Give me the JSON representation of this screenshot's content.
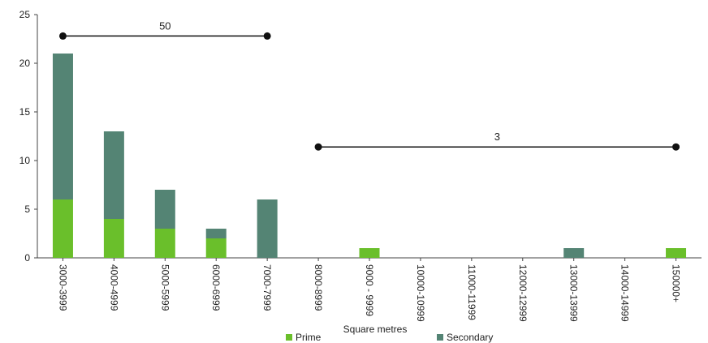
{
  "chart_data": {
    "type": "bar",
    "stacked": true,
    "xlabel": "Square metres",
    "ylabel": "",
    "ylim": [
      0,
      25
    ],
    "yticks": [
      0,
      5,
      10,
      15,
      20,
      25
    ],
    "grid": false,
    "legend_position": "bottom",
    "categories": [
      "3000-3999",
      "4000-4999",
      "5000-5999",
      "6000-6999",
      "7000-7999",
      "8000-8999",
      "9000 - 9999",
      "10000-10999",
      "11000-11999",
      "12000-12999",
      "13000-13999",
      "14000-14999",
      "150000+"
    ],
    "series": [
      {
        "name": "Prime",
        "color": "#6abf2b",
        "values": [
          6,
          4,
          3,
          2,
          0,
          0,
          1,
          0,
          0,
          0,
          0,
          0,
          1
        ]
      },
      {
        "name": "Secondary",
        "color": "#548474",
        "values": [
          15,
          9,
          4,
          1,
          6,
          0,
          0,
          0,
          0,
          0,
          1,
          0,
          0
        ]
      }
    ],
    "annotations": [
      {
        "label": "50",
        "from": "3000-3999",
        "to": "7000-7999",
        "y": 22.8
      },
      {
        "label": "3",
        "from": "8000-8999",
        "to": "150000+",
        "y": 11.4
      }
    ]
  }
}
